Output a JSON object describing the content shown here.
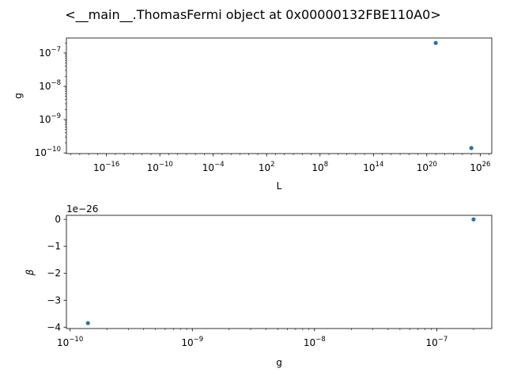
{
  "figure": {
    "title": "<__main__.ThomasFermi object at 0x00000132FBE110A0>"
  },
  "chart_data": [
    {
      "type": "scatter",
      "title": "",
      "xlabel": "L",
      "ylabel": "g",
      "xscale": "log",
      "yscale": "log",
      "xlim_log10": [
        -20.5,
        27.3
      ],
      "ylim_log10": [
        -10.02,
        -6.55
      ],
      "xticks": [
        {
          "base": "10",
          "exp": "−16",
          "log10": -16
        },
        {
          "base": "10",
          "exp": "−10",
          "log10": -10
        },
        {
          "base": "10",
          "exp": "−4",
          "log10": -4
        },
        {
          "base": "10",
          "exp": "2",
          "log10": 2
        },
        {
          "base": "10",
          "exp": "8",
          "log10": 8
        },
        {
          "base": "10",
          "exp": "14",
          "log10": 14
        },
        {
          "base": "10",
          "exp": "20",
          "log10": 20
        },
        {
          "base": "10",
          "exp": "26",
          "log10": 26
        }
      ],
      "yticks": [
        {
          "base": "10",
          "exp": "−7",
          "log10": -7
        },
        {
          "base": "10",
          "exp": "−8",
          "log10": -8
        },
        {
          "base": "10",
          "exp": "−9",
          "log10": -9
        },
        {
          "base": "10",
          "exp": "−10",
          "log10": -10
        }
      ],
      "points": [
        {
          "x": 1e+21,
          "y": 2e-07
        },
        {
          "x": 1e+25,
          "y": 1.4e-10
        }
      ],
      "color": "#1f77b4",
      "grid": false
    },
    {
      "type": "scatter",
      "title": "",
      "xlabel": "g",
      "ylabel": "β",
      "xscale": "log",
      "yscale": "linear",
      "offset_text": "1e−26",
      "xlim_log10": [
        -10.03,
        -6.55
      ],
      "ylim": [
        -4.05,
        0.15
      ],
      "xticks": [
        {
          "base": "10",
          "exp": "−10",
          "log10": -10
        },
        {
          "base": "10",
          "exp": "−9",
          "log10": -9
        },
        {
          "base": "10",
          "exp": "−8",
          "log10": -8
        },
        {
          "base": "10",
          "exp": "−7",
          "log10": -7
        }
      ],
      "yticks": [
        {
          "label": "0",
          "value": 0
        },
        {
          "label": "−1",
          "value": -1
        },
        {
          "label": "−2",
          "value": -2
        },
        {
          "label": "−3",
          "value": -3
        },
        {
          "label": "−4",
          "value": -4
        }
      ],
      "points": [
        {
          "x": 1.4e-10,
          "y": -3.85
        },
        {
          "x": 2e-07,
          "y": 0
        }
      ],
      "color": "#1f77b4",
      "grid": false
    }
  ]
}
